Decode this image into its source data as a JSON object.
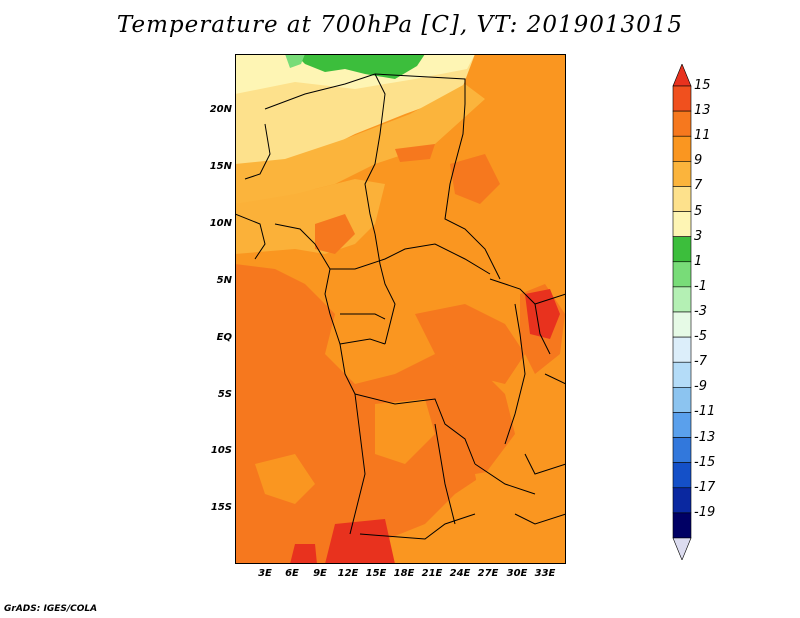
{
  "title": "Temperature at 700hPa [C], VT: 2019013015",
  "lat_labels": [
    "20N",
    "15N",
    "10N",
    "5N",
    "EQ",
    "5S",
    "10S",
    "15S"
  ],
  "lon_labels": [
    "3E",
    "6E",
    "9E",
    "12E",
    "15E",
    "18E",
    "21E",
    "24E",
    "27E",
    "30E",
    "33E"
  ],
  "colorbar": {
    "labels": [
      "15",
      "13",
      "11",
      "9",
      "7",
      "5",
      "3",
      "1",
      "-1",
      "-3",
      "-5",
      "-7",
      "-9",
      "-11",
      "-13",
      "-15",
      "-17",
      "-19"
    ],
    "colors": [
      "#e8321e",
      "#f0501e",
      "#f6781e",
      "#fa9620",
      "#fbb43c",
      "#fde18c",
      "#fef5b4",
      "#3cbe3c",
      "#78dc78",
      "#b4f0b4",
      "#e6fae6",
      "#dceefa",
      "#b4dcf8",
      "#8cc4f0",
      "#5aa0ec",
      "#3278dc",
      "#1450c8",
      "#0a28a0",
      "#000064",
      "#dcdcf0"
    ]
  },
  "credit": "GrADS: IGES/COLA"
}
